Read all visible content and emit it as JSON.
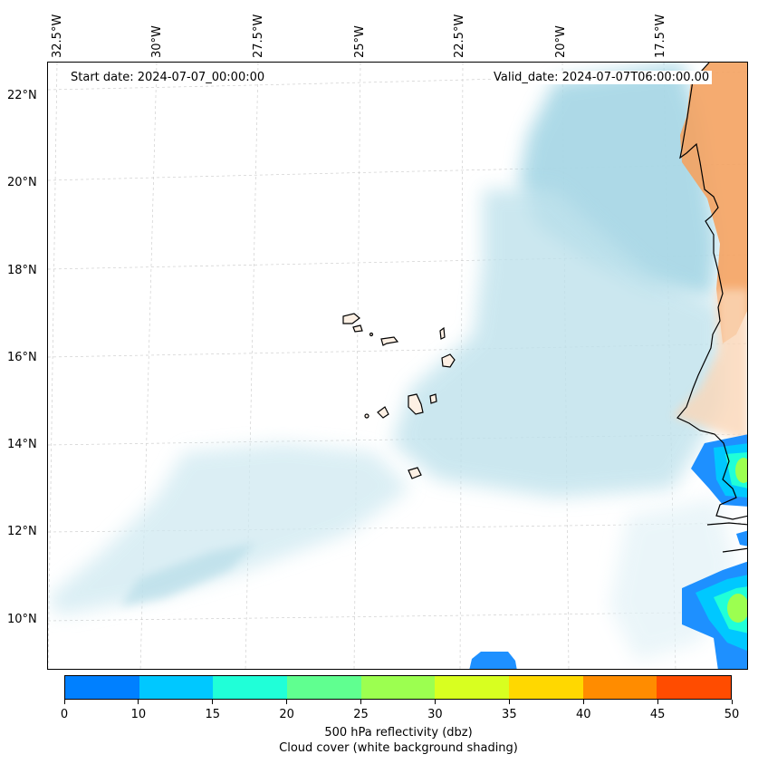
{
  "map": {
    "start_date": "Start date: 2024-07-07_00:00:00",
    "valid_date": "Valid_date: 2024-07-07T06:00:00.00",
    "longitude_labels": [
      "32.5°W",
      "30°W",
      "27.5°W",
      "25°W",
      "22.5°W",
      "20°W",
      "17.5°W"
    ],
    "latitude_labels": [
      "22°N",
      "20°N",
      "18°N",
      "16°N",
      "14°N",
      "12°N",
      "10°N"
    ],
    "cloud_color": "#a9d8e6",
    "land_warm_color": "#f4a261",
    "reflectivity_low_color": "#1e90ff"
  },
  "colorbar": {
    "ticks": [
      "0",
      "10",
      "15",
      "20",
      "25",
      "30",
      "35",
      "40",
      "45",
      "50"
    ],
    "colors": [
      "#0080ff",
      "#00c8ff",
      "#20ffd8",
      "#60ff90",
      "#9cff50",
      "#d8ff20",
      "#ffd800",
      "#ff8c00",
      "#ff4c00"
    ],
    "label_line1": "500 hPa reflectivity (dbz)",
    "label_line2": "Cloud cover (white background shading)"
  }
}
